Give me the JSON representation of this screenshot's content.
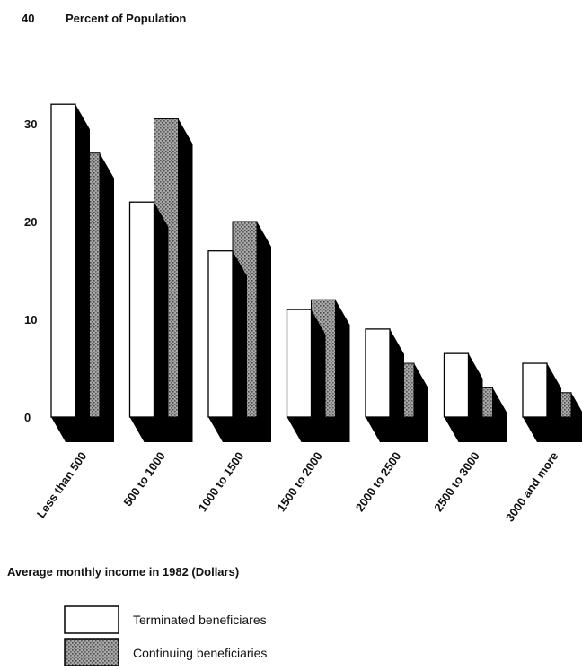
{
  "chart_data": {
    "type": "bar",
    "title": "Percent of Population",
    "xlabel": "Average monthly income in 1982 (Dollars)",
    "ylabel": "",
    "ylim": [
      0,
      40
    ],
    "yticks": [
      0,
      10,
      20,
      30,
      40
    ],
    "grid": false,
    "legend_position": "bottom-left",
    "categories": [
      "Less than 500",
      "500 to 1000",
      "1000 to 1500",
      "1500 to 2000",
      "2000 to 2500",
      "2500 to 3000",
      "3000 and more"
    ],
    "series": [
      {
        "name": "Terminated beneficiares",
        "values": [
          32,
          22,
          17,
          11,
          9,
          6.5,
          5.5
        ],
        "fill": "#ffffff"
      },
      {
        "name": "Continuing beneficiaries",
        "values": [
          27,
          30.5,
          20,
          12,
          5.5,
          3,
          2.5
        ],
        "fill": "#9a9a9a"
      }
    ],
    "colors": {
      "shadow": "#000000",
      "outline": "#000000"
    }
  }
}
